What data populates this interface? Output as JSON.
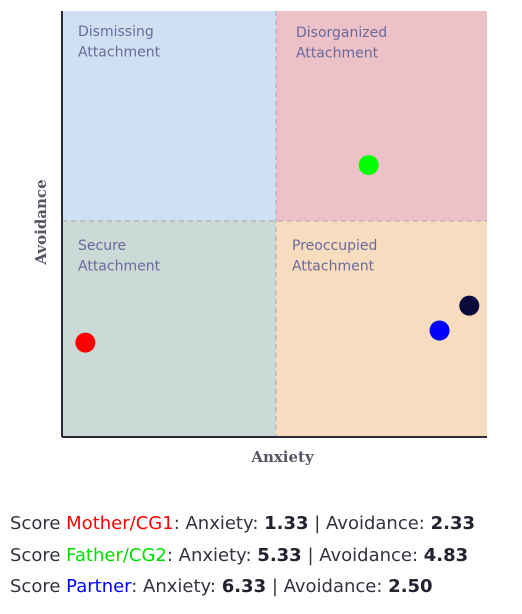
{
  "chart_data": {
    "type": "scatter",
    "xlabel": "Anxiety",
    "ylabel": "Avoidance",
    "xlim": [
      1,
      7
    ],
    "ylim": [
      1,
      7
    ],
    "grid": false,
    "quadrants": [
      {
        "name": "Dismissing Attachment",
        "lines": [
          "Dismissing",
          "Attachment"
        ],
        "color": "#cfe0f3"
      },
      {
        "name": "Disorganized Attachment",
        "lines": [
          "Disorganized",
          "Attachment"
        ],
        "color": "#ecc1c8"
      },
      {
        "name": "Secure Attachment",
        "lines": [
          "Secure",
          "Attachment"
        ],
        "color": "#cbd9d7"
      },
      {
        "name": "Preoccupied Attachment",
        "lines": [
          "Preoccupied",
          "Attachment"
        ],
        "color": "#f8dcc0"
      }
    ],
    "series": [
      {
        "name": "Mother/CG1",
        "color": "#ff0000",
        "points": [
          {
            "x": 1.33,
            "y": 2.33
          }
        ]
      },
      {
        "name": "Father/CG2",
        "color": "#00ff00",
        "points": [
          {
            "x": 5.33,
            "y": 4.83
          }
        ]
      },
      {
        "name": "Partner",
        "color": "#0000ff",
        "points": [
          {
            "x": 6.33,
            "y": 2.5
          }
        ]
      },
      {
        "name": "",
        "color": "#0a0a3a",
        "points": [
          {
            "x": 6.75,
            "y": 2.85
          }
        ]
      }
    ]
  },
  "scores": {
    "prefix": "Score",
    "anxiety_label": ": Anxiety: ",
    "avoidance_label": " | Avoidance: ",
    "rows": [
      {
        "name": "Mother/CG1",
        "color": "#ff0000",
        "anxiety": "1.33",
        "avoidance": "2.33"
      },
      {
        "name": "Father/CG2",
        "color": "#00dd00",
        "anxiety": "5.33",
        "avoidance": "4.83"
      },
      {
        "name": "Partner",
        "color": "#0000ff",
        "anxiety": "6.33",
        "avoidance": "2.50"
      }
    ]
  }
}
